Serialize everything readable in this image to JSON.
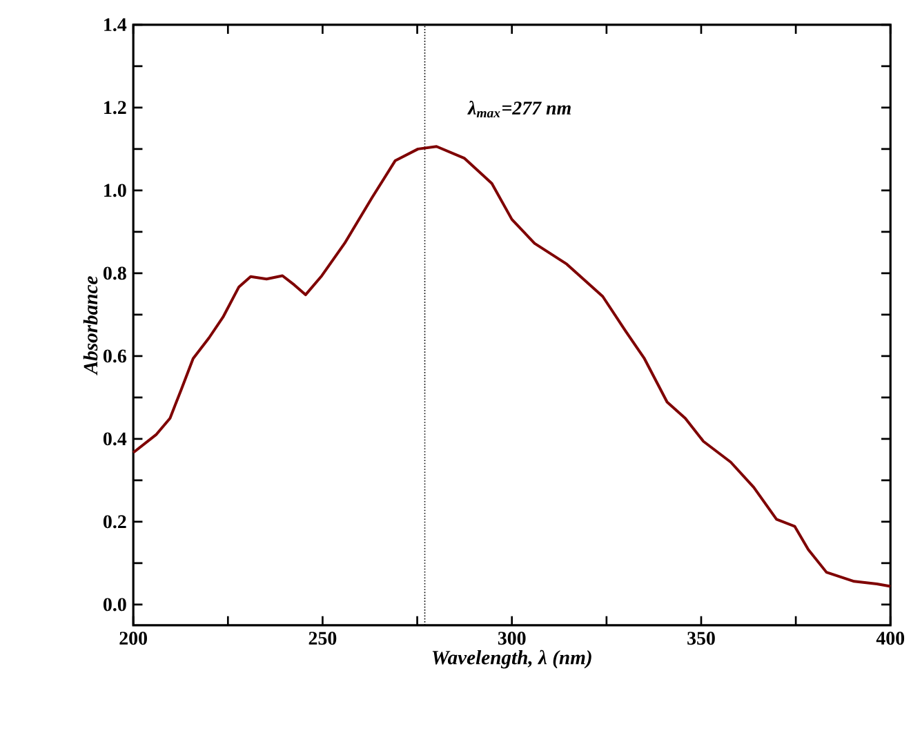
{
  "chart_data": {
    "type": "line",
    "xlabel": "Wavelength, λ (nm)",
    "ylabel": "Absorbance",
    "x": [
      200,
      206,
      209.7,
      212.7,
      215.8,
      220,
      223.7,
      227.9,
      231,
      235.2,
      239.4,
      242.5,
      245.5,
      249.8,
      255.8,
      263.1,
      269.2,
      275.2,
      280.1,
      287.4,
      294.7,
      300,
      306,
      314.5,
      324,
      330,
      335,
      341,
      345.8,
      350.6,
      357.8,
      363.9,
      369.9,
      374.7,
      378.3,
      383.1,
      390.4,
      396.4,
      400
    ],
    "series": [
      {
        "color": "#7f0000",
        "values": [
          0.367,
          0.41,
          0.45,
          0.52,
          0.594,
          0.644,
          0.694,
          0.767,
          0.792,
          0.786,
          0.794,
          0.772,
          0.748,
          0.794,
          0.872,
          0.983,
          1.072,
          1.1,
          1.106,
          1.078,
          1.017,
          0.93,
          0.872,
          0.822,
          0.744,
          0.661,
          0.594,
          0.489,
          0.45,
          0.394,
          0.344,
          0.283,
          0.206,
          0.189,
          0.133,
          0.078,
          0.056,
          0.05,
          0.044
        ]
      }
    ],
    "xlim": [
      200,
      400
    ],
    "ylim": [
      -0.05,
      1.4
    ],
    "xticks": [
      200,
      {
        "value": 225,
        "label": null
      },
      250,
      {
        "value": 275,
        "label": null
      },
      300,
      {
        "value": 325,
        "label": null
      },
      350,
      {
        "value": 375,
        "label": null
      },
      400
    ],
    "yticks": [
      {
        "value": 0,
        "label": "0.0"
      },
      {
        "value": 0.1,
        "label": null
      },
      {
        "value": 0.2,
        "label": "0.2"
      },
      {
        "value": 0.3,
        "label": null
      },
      {
        "value": 0.4,
        "label": "0.4"
      },
      {
        "value": 0.5,
        "label": null
      },
      {
        "value": 0.6,
        "label": "0.6"
      },
      {
        "value": 0.7,
        "label": null
      },
      {
        "value": 0.8,
        "label": "0.8"
      },
      {
        "value": 0.9,
        "label": null
      },
      {
        "value": 1.0,
        "label": "1.0"
      },
      {
        "value": 1.1,
        "label": null
      },
      {
        "value": 1.2,
        "label": "1.2"
      },
      {
        "value": 1.3,
        "label": null
      },
      {
        "value": 1.4,
        "label": "1.4"
      }
    ],
    "ref_lines": [
      {
        "axis": "x",
        "value": 277,
        "label": "λ$_{max}$=277 nm",
        "color": "#000000",
        "line_style": "dotted"
      }
    ],
    "marker": "none"
  }
}
